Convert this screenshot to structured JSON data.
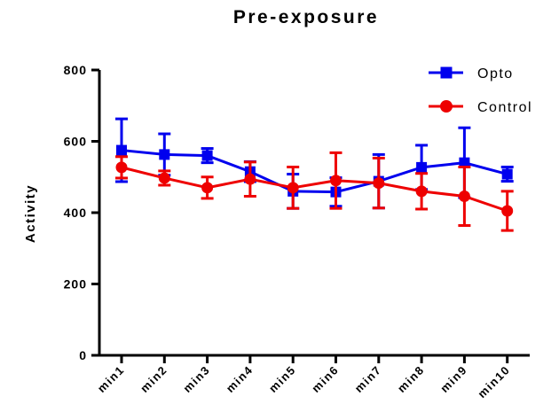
{
  "chart_data": {
    "type": "line",
    "title": "Pre-exposure",
    "xlabel": "",
    "ylabel": "Activity",
    "ylim": [
      0,
      800
    ],
    "yticks": [
      0,
      200,
      400,
      600,
      800
    ],
    "categories": [
      "min1",
      "min2",
      "min3",
      "min4",
      "min5",
      "min6",
      "min7",
      "min8",
      "min9",
      "min10"
    ],
    "legend_position": "top-right",
    "series": [
      {
        "name": "Opto",
        "color": "#0000ee",
        "marker": "square",
        "values": [
          575,
          563,
          560,
          515,
          460,
          458,
          488,
          527,
          540,
          508
        ],
        "error": [
          88,
          58,
          20,
          28,
          48,
          40,
          75,
          62,
          98,
          20
        ]
      },
      {
        "name": "Control",
        "color": "#ee0000",
        "marker": "circle",
        "values": [
          527,
          497,
          470,
          494,
          470,
          490,
          483,
          460,
          446,
          405
        ],
        "error": [
          30,
          20,
          30,
          48,
          58,
          78,
          70,
          50,
          82,
          55
        ]
      }
    ]
  }
}
